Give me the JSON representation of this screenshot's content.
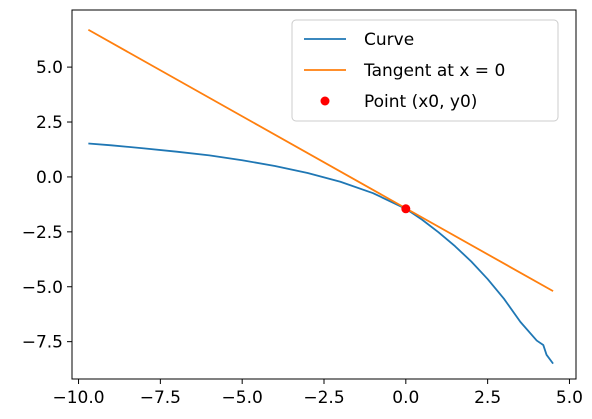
{
  "chart_data": {
    "type": "line",
    "title": "",
    "xlabel": "",
    "ylabel": "",
    "xlim": [
      -10.2,
      5.2
    ],
    "ylim": [
      -9.2,
      7.6
    ],
    "x_ticks": [
      -10.0,
      -7.5,
      -5.0,
      -2.5,
      0.0,
      2.5,
      5.0
    ],
    "x_tick_labels": [
      "−10.0",
      "−7.5",
      "−5.0",
      "−2.5",
      "0.0",
      "2.5",
      "5.0"
    ],
    "y_ticks": [
      5.0,
      2.5,
      0.0,
      -2.5,
      -5.0,
      -7.5
    ],
    "y_tick_labels": [
      "5.0",
      "2.5",
      "0.0",
      "−2.5",
      "−5.0",
      "−7.5"
    ],
    "grid": false,
    "legend_position": "top-right",
    "series": [
      {
        "name": "Curve",
        "kind": "line",
        "color": "#1f77b4",
        "x": [
          -9.7,
          -9.0,
          -8.0,
          -7.0,
          -6.0,
          -5.0,
          -4.0,
          -3.0,
          -2.0,
          -1.0,
          0.0,
          0.5,
          1.0,
          1.5,
          2.0,
          2.5,
          3.0,
          3.5,
          4.0,
          4.2,
          4.3,
          4.5
        ],
        "y": [
          1.52,
          1.44,
          1.3,
          1.15,
          0.98,
          0.76,
          0.5,
          0.18,
          -0.22,
          -0.74,
          -1.45,
          -1.95,
          -2.52,
          -3.15,
          -3.85,
          -4.65,
          -5.55,
          -6.6,
          -7.45,
          -7.65,
          -8.1,
          -8.5
        ]
      },
      {
        "name": "Tangent at x = 0",
        "kind": "line",
        "color": "#ff7f0e",
        "x": [
          -9.7,
          4.5
        ],
        "y": [
          6.7,
          -5.2
        ]
      },
      {
        "name": "Point (x0, y0)",
        "kind": "scatter",
        "color": "#ff0000",
        "x": [
          0.0
        ],
        "y": [
          -1.45
        ]
      }
    ]
  }
}
